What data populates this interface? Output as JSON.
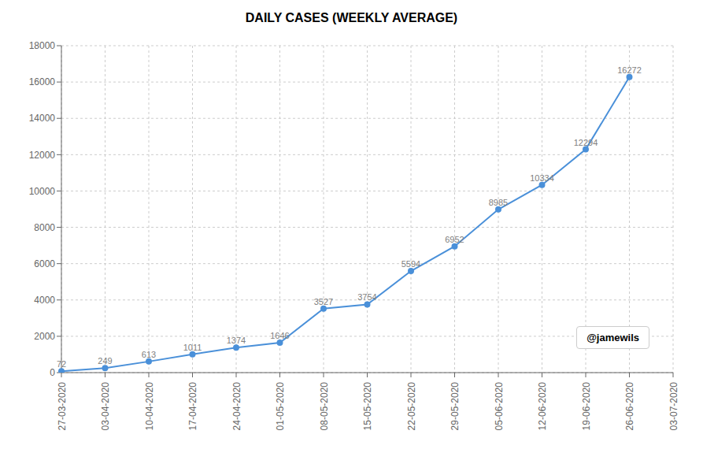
{
  "chart_data": {
    "type": "line",
    "title": "DAILY CASES (WEEKLY AVERAGE)",
    "categories": [
      "27-03-2020",
      "03-04-2020",
      "10-04-2020",
      "17-04-2020",
      "24-04-2020",
      "01-05-2020",
      "08-05-2020",
      "15-05-2020",
      "22-05-2020",
      "29-05-2020",
      "05-06-2020",
      "12-06-2020",
      "19-06-2020",
      "26-06-2020",
      "03-07-2020"
    ],
    "values": [
      72,
      249,
      613,
      1011,
      1374,
      1646,
      3527,
      3754,
      5594,
      6952,
      8985,
      10334,
      12294,
      16272,
      null
    ],
    "color": "#4a90d9",
    "marker": "circle",
    "ylim": [
      0,
      18000
    ],
    "yticks": [
      0,
      2000,
      4000,
      6000,
      8000,
      10000,
      12000,
      14000,
      16000,
      18000
    ],
    "grid": true,
    "data_labels": true,
    "annotations": [
      "@jamewils"
    ]
  }
}
